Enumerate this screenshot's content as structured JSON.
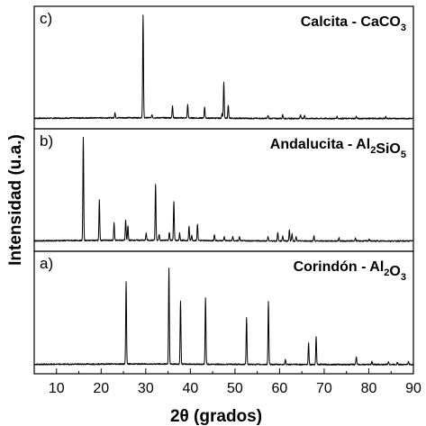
{
  "chart_data": {
    "type": "line",
    "xlabel": "2θ (grados)",
    "ylabel": "Intensidad (u.a.)",
    "xlim": [
      5,
      90
    ],
    "xticks": [
      10,
      20,
      30,
      40,
      50,
      60,
      70,
      80,
      90
    ],
    "grid": false,
    "panels": [
      {
        "letter": "c)",
        "title_parts": [
          {
            "text": "Calcita - CaCO",
            "sub": false
          },
          {
            "text": "3",
            "sub": true
          }
        ],
        "baseline": 0.03,
        "peaks": [
          {
            "x": 23.1,
            "y": 0.05
          },
          {
            "x": 29.4,
            "y": 1.0
          },
          {
            "x": 31.4,
            "y": 0.03
          },
          {
            "x": 36.0,
            "y": 0.12
          },
          {
            "x": 39.4,
            "y": 0.13
          },
          {
            "x": 43.2,
            "y": 0.11
          },
          {
            "x": 47.1,
            "y": 0.05
          },
          {
            "x": 47.5,
            "y": 0.35
          },
          {
            "x": 48.5,
            "y": 0.13
          },
          {
            "x": 57.4,
            "y": 0.03
          },
          {
            "x": 60.7,
            "y": 0.04
          },
          {
            "x": 64.7,
            "y": 0.04
          },
          {
            "x": 65.6,
            "y": 0.03
          },
          {
            "x": 72.9,
            "y": 0.02
          },
          {
            "x": 77.2,
            "y": 0.02
          },
          {
            "x": 83.8,
            "y": 0.02
          }
        ]
      },
      {
        "letter": "b)",
        "title_parts": [
          {
            "text": "Andalucita - Al",
            "sub": false
          },
          {
            "text": "2",
            "sub": true
          },
          {
            "text": "SiO",
            "sub": false
          },
          {
            "text": "5",
            "sub": true
          }
        ],
        "baseline": 0.03,
        "peaks": [
          {
            "x": 16.0,
            "y": 1.0
          },
          {
            "x": 19.6,
            "y": 0.39
          },
          {
            "x": 22.9,
            "y": 0.17
          },
          {
            "x": 25.5,
            "y": 0.2
          },
          {
            "x": 26.0,
            "y": 0.14
          },
          {
            "x": 30.1,
            "y": 0.07
          },
          {
            "x": 32.2,
            "y": 0.54
          },
          {
            "x": 33.0,
            "y": 0.06
          },
          {
            "x": 35.3,
            "y": 0.08
          },
          {
            "x": 36.3,
            "y": 0.38
          },
          {
            "x": 37.6,
            "y": 0.07
          },
          {
            "x": 39.7,
            "y": 0.14
          },
          {
            "x": 40.3,
            "y": 0.05
          },
          {
            "x": 41.6,
            "y": 0.16
          },
          {
            "x": 45.4,
            "y": 0.06
          },
          {
            "x": 47.6,
            "y": 0.04
          },
          {
            "x": 49.5,
            "y": 0.04
          },
          {
            "x": 51.0,
            "y": 0.04
          },
          {
            "x": 57.4,
            "y": 0.04
          },
          {
            "x": 59.6,
            "y": 0.08
          },
          {
            "x": 60.7,
            "y": 0.05
          },
          {
            "x": 62.2,
            "y": 0.11
          },
          {
            "x": 62.8,
            "y": 0.07
          },
          {
            "x": 63.7,
            "y": 0.04
          },
          {
            "x": 67.7,
            "y": 0.05
          },
          {
            "x": 73.3,
            "y": 0.03
          },
          {
            "x": 77.0,
            "y": 0.03
          },
          {
            "x": 80.1,
            "y": 0.02
          }
        ]
      },
      {
        "letter": "a)",
        "title_parts": [
          {
            "text": "Corindón - Al",
            "sub": false
          },
          {
            "text": "2",
            "sub": true
          },
          {
            "text": "O",
            "sub": false
          },
          {
            "text": "3",
            "sub": true
          }
        ],
        "baseline": 0.02,
        "peaks": [
          {
            "x": 25.6,
            "y": 0.8
          },
          {
            "x": 35.2,
            "y": 0.93
          },
          {
            "x": 37.8,
            "y": 0.62
          },
          {
            "x": 43.4,
            "y": 0.65
          },
          {
            "x": 52.6,
            "y": 0.46
          },
          {
            "x": 57.5,
            "y": 0.61
          },
          {
            "x": 61.3,
            "y": 0.05
          },
          {
            "x": 66.5,
            "y": 0.21
          },
          {
            "x": 68.2,
            "y": 0.27
          },
          {
            "x": 77.2,
            "y": 0.08
          },
          {
            "x": 80.7,
            "y": 0.03
          },
          {
            "x": 84.4,
            "y": 0.03
          },
          {
            "x": 86.4,
            "y": 0.02
          },
          {
            "x": 88.9,
            "y": 0.03
          }
        ]
      }
    ]
  }
}
